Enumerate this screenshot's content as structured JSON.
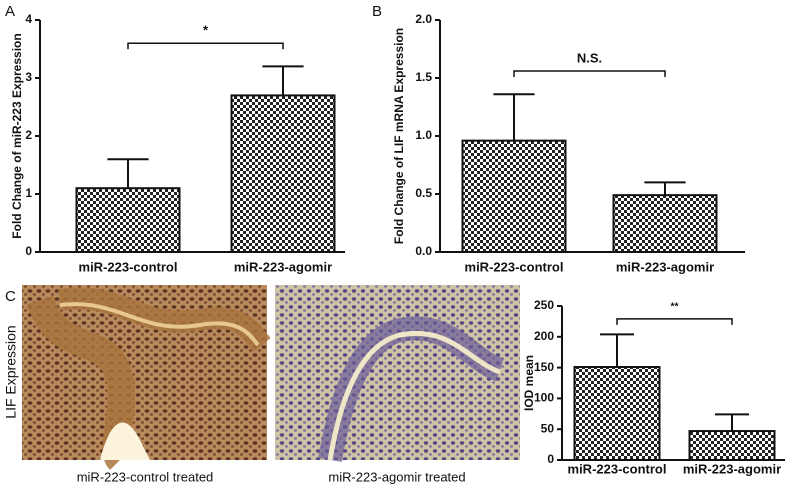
{
  "chart_data": [
    {
      "type": "bar",
      "panel_label": "A",
      "y_label": "Fold Change of miR-223 Expression",
      "categories": [
        "miR-223-control",
        "miR-223-agomir"
      ],
      "values": [
        1.1,
        2.7
      ],
      "errors": [
        0.5,
        0.5
      ],
      "color": "#222222",
      "ylim": [
        0,
        4
      ],
      "yticks": [
        0,
        1,
        2,
        3,
        4
      ],
      "annotation": "*"
    },
    {
      "type": "bar",
      "panel_label": "B",
      "y_label": "Fold Change of LIF mRNA Expression",
      "categories": [
        "miR-223-control",
        "miR-223-agomir"
      ],
      "values": [
        0.96,
        0.49
      ],
      "errors": [
        0.4,
        0.11
      ],
      "color": "#222222",
      "ylim": [
        0,
        2
      ],
      "yticks": [
        {
          "value": 0,
          "label": "0.0"
        },
        {
          "value": 0.5,
          "label": "0.5"
        },
        {
          "value": 1,
          "label": "1.0"
        },
        {
          "value": 1.5,
          "label": "1.5"
        },
        {
          "value": 2,
          "label": "2.0"
        }
      ],
      "annotation": "N.S."
    },
    {
      "type": "bar",
      "y_label": "IOD mean",
      "categories": [
        "miR-223-control",
        "miR-223-agomir"
      ],
      "values": [
        151,
        47
      ],
      "errors": [
        53,
        27
      ],
      "color": "#222222",
      "ylim": [
        0,
        250
      ],
      "yticks": [
        0,
        50,
        100,
        150,
        200,
        250
      ],
      "annotation": "**"
    }
  ],
  "images": {
    "panel_label": "C",
    "y_label": "LIF Expression",
    "captions": [
      "miR-223-control treated",
      "miR-223-agomir treated"
    ]
  }
}
